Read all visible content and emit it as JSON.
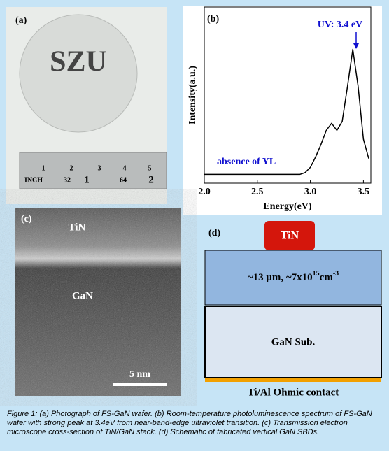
{
  "panel_a": {
    "label": "(a)",
    "wafer_text": "SZU",
    "ruler": [
      "1",
      "2",
      "3",
      "4",
      "5",
      "INCH",
      "32",
      "1",
      "64",
      "2"
    ]
  },
  "chart_data": {
    "type": "line",
    "panel_label": "(b)",
    "xlabel": "Energy(eV)",
    "ylabel": "Intensity(a.u.)",
    "annotations": [
      "UV: 3.4 eV",
      "absence of YL"
    ],
    "x": [
      2.0,
      2.5,
      2.9,
      2.95,
      3.0,
      3.05,
      3.1,
      3.15,
      3.2,
      3.25,
      3.3,
      3.35,
      3.4,
      3.45,
      3.5,
      3.55
    ],
    "series": [
      {
        "color": "#000000",
        "values": [
          0.05,
          0.05,
          0.05,
          0.06,
          0.09,
          0.15,
          0.22,
          0.3,
          0.34,
          0.3,
          0.35,
          0.55,
          0.76,
          0.55,
          0.25,
          0.14
        ]
      }
    ],
    "xlim": [
      2.0,
      3.57
    ],
    "ylim": [
      0,
      1
    ],
    "xticks": [
      {
        "value": 2,
        "label": "2.0"
      },
      2.5,
      {
        "value": 3,
        "label": "3.0"
      },
      3.5
    ]
  },
  "panel_c": {
    "label": "(c)",
    "top": "TiN",
    "bottom": "GaN",
    "scale": "5 nm"
  },
  "panel_d": {
    "label": "(d)",
    "contact": "TiN",
    "drift_a": "~13 μm, ~7x10",
    "drift_b": "15",
    "drift_c": "cm",
    "drift_d": "-3",
    "substrate": "GaN Sub.",
    "ohmic": "Ti/Al Ohmic contact"
  },
  "caption": "Figure 1: (a) Photograph of FS-GaN wafer. (b) Room-temperature photoluminescence spectrum of FS-GaN wafer with strong peak at 3.4eV from near-band-edge ultraviolet transition. (c) Transmission electron microscope cross-section of TiN/GaN stack. (d) Schematic of fabricated vertical GaN SBDs."
}
